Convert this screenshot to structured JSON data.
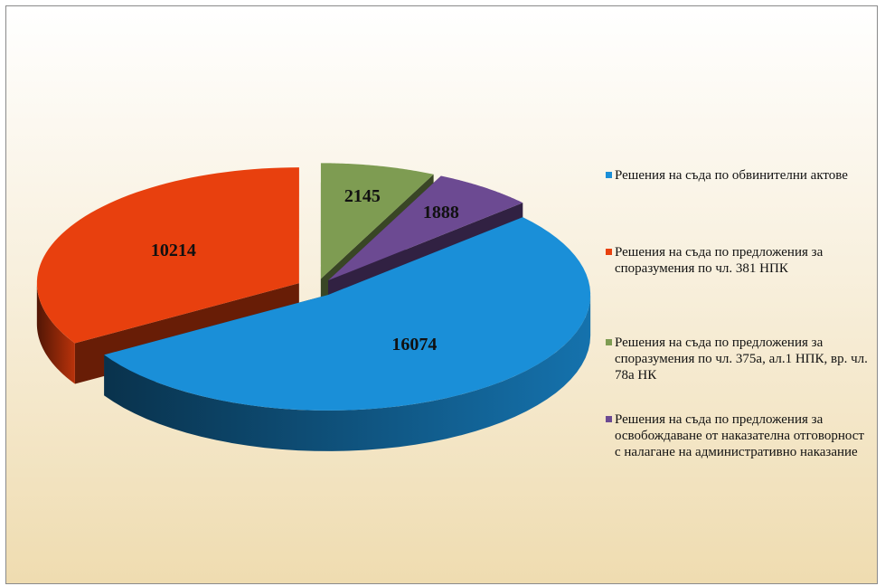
{
  "chart_data": {
    "type": "pie",
    "categories": [
      "Решения на съда по обвинителни актове",
      "Решения на съда по предложения  за споразумения  по чл. 381 НПК",
      "Решения на съда по предложения  за споразумения  по чл. 375а, ал.1 НПК, вр. чл. 78а НК",
      "Решения на съда по предложения  за освобождаване от наказателна отговорност с налагане  на административно  наказание"
    ],
    "values": [
      16074,
      10214,
      2145,
      1888
    ],
    "colors": [
      "#1a8fd8",
      "#e8400e",
      "#7e9c52",
      "#6c4a92"
    ]
  }
}
